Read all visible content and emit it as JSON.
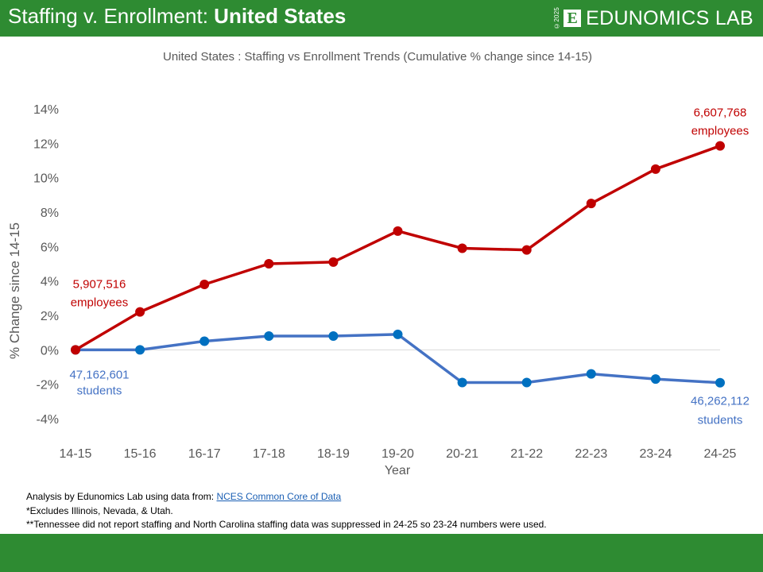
{
  "header": {
    "title_prefix": "Staffing v. Enrollment: ",
    "title_bold": "United States",
    "logo_year": "©2025",
    "logo_mark": "E",
    "logo_text": "EDUNOMICS LAB"
  },
  "colors": {
    "brand_green": "#2e8b32",
    "staffing": "#c00000",
    "enrollment_line": "#4472c4",
    "enrollment_marker": "#0070c0"
  },
  "notes": {
    "source_prefix": "Analysis by Edunomics Lab using data from: ",
    "source_link": "NCES Common Core of Data",
    "note1": "*Excludes Illinois, Nevada, & Utah.",
    "note2": "**Tennessee did not report staffing and North Carolina staffing data was suppressed in 24-25 so 23-24  numbers were used."
  },
  "chart_data": {
    "type": "line",
    "title": "United States : Staffing vs Enrollment Trends (Cumulative % change since 14-15)",
    "xlabel": "Year",
    "ylabel": "% Change since 14-15",
    "ylim": [
      -4,
      14
    ],
    "yticks": [
      -4,
      -2,
      0,
      2,
      4,
      6,
      8,
      10,
      12,
      14
    ],
    "ytick_labels": [
      "-4%",
      "-2%",
      "0%",
      "2%",
      "4%",
      "6%",
      "8%",
      "10%",
      "12%",
      "14%"
    ],
    "grid": false,
    "zero_line": true,
    "categories": [
      "14-15",
      "15-16",
      "16-17",
      "17-18",
      "18-19",
      "19-20",
      "20-21",
      "21-22",
      "22-23",
      "23-24",
      "24-25"
    ],
    "series": [
      {
        "name": "Staffing",
        "color": "#c00000",
        "values": [
          0.0,
          2.2,
          3.8,
          5.0,
          5.1,
          6.9,
          5.9,
          5.8,
          8.5,
          10.5,
          11.85
        ]
      },
      {
        "name": "Enrollment",
        "color": "#4472c4",
        "values": [
          0.0,
          0.0,
          0.5,
          0.8,
          0.8,
          0.9,
          -1.9,
          -1.9,
          -1.4,
          -1.7,
          -1.91
        ]
      }
    ],
    "annotations": [
      {
        "series": "Staffing",
        "index": 0,
        "line1": "5,907,516",
        "line2": "employees",
        "position": "above"
      },
      {
        "series": "Staffing",
        "index": 10,
        "line1": "6,607,768",
        "line2": "employees",
        "position": "above"
      },
      {
        "series": "Enrollment",
        "index": 0,
        "line1": "47,162,601",
        "line2": "students",
        "position": "below"
      },
      {
        "series": "Enrollment",
        "index": 10,
        "line1": "46,262,112",
        "line2": "students",
        "position": "below"
      }
    ]
  }
}
